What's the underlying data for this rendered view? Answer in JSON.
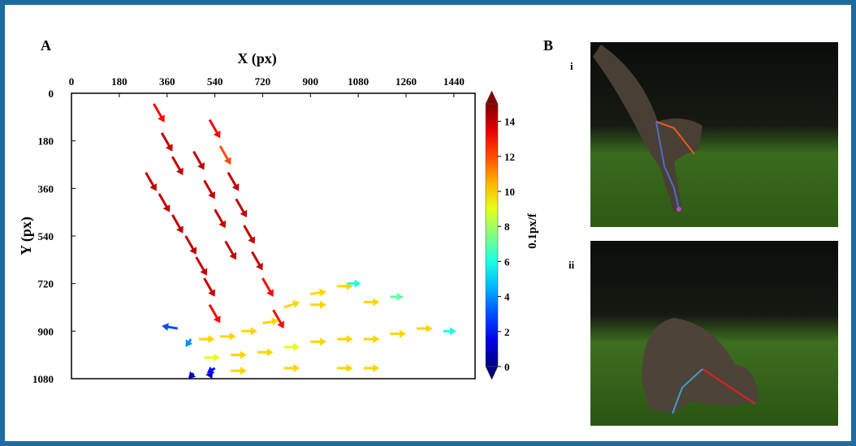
{
  "panel_a": "A",
  "panel_b": "B",
  "photo_i": "i",
  "photo_ii": "ii",
  "chart_data": {
    "type": "quiver",
    "xlabel": "X (px)",
    "ylabel": "Y (px)",
    "xlim": [
      0,
      1520
    ],
    "ylim": [
      0,
      1080
    ],
    "xticks": [
      0,
      180,
      360,
      540,
      720,
      900,
      1080,
      1260,
      1440
    ],
    "yticks": [
      0,
      180,
      360,
      540,
      720,
      900,
      1080
    ],
    "x": [
      310,
      340,
      380,
      280,
      330,
      380,
      430,
      470,
      500,
      520,
      520,
      560,
      590,
      620,
      650,
      680,
      720,
      760,
      460,
      500,
      540,
      580,
      480,
      560,
      640,
      720,
      800,
      900,
      1000,
      1040,
      500,
      600,
      700,
      800,
      900,
      1000,
      1100,
      1200,
      1300,
      1400,
      600,
      800,
      1000,
      1100,
      900,
      1100,
      1200,
      400,
      460,
      520,
      540,
      450
    ],
    "y": [
      40,
      150,
      240,
      300,
      380,
      460,
      540,
      620,
      700,
      800,
      100,
      200,
      300,
      400,
      500,
      600,
      700,
      820,
      220,
      330,
      440,
      560,
      930,
      920,
      900,
      870,
      810,
      760,
      730,
      720,
      1000,
      990,
      980,
      960,
      940,
      930,
      930,
      910,
      890,
      900,
      1050,
      1040,
      1040,
      1040,
      800,
      790,
      770,
      890,
      1060,
      1060,
      1040,
      930
    ],
    "u": [
      40,
      40,
      40,
      40,
      40,
      40,
      40,
      40,
      40,
      40,
      40,
      40,
      40,
      40,
      40,
      40,
      40,
      40,
      40,
      40,
      40,
      40,
      60,
      60,
      60,
      60,
      60,
      60,
      60,
      50,
      60,
      60,
      60,
      60,
      60,
      60,
      60,
      60,
      60,
      50,
      60,
      60,
      60,
      60,
      60,
      60,
      50,
      -60,
      -20,
      10,
      -30,
      -20
    ],
    "v": [
      70,
      70,
      70,
      70,
      70,
      70,
      70,
      70,
      70,
      70,
      70,
      70,
      70,
      70,
      70,
      70,
      70,
      70,
      70,
      70,
      70,
      70,
      0,
      0,
      0,
      -10,
      -20,
      -10,
      0,
      0,
      0,
      0,
      0,
      0,
      0,
      0,
      0,
      0,
      0,
      0,
      0,
      0,
      0,
      0,
      0,
      0,
      0,
      -10,
      20,
      20,
      20,
      30
    ],
    "speed": [
      13,
      14,
      14,
      14,
      14,
      14,
      14,
      14,
      14,
      13,
      13,
      12,
      14,
      14,
      14,
      14,
      13,
      13,
      14,
      14,
      14,
      14,
      10,
      10,
      10,
      10,
      10,
      10,
      10,
      6,
      9,
      10,
      10,
      9,
      10,
      10,
      10,
      10,
      10,
      6,
      10,
      10,
      10,
      10,
      10,
      10,
      7,
      3,
      1,
      1,
      2,
      4
    ],
    "colorbar_label": "0.1px/f",
    "clim": [
      0,
      15
    ],
    "cticks": [
      0,
      2,
      4,
      6,
      8,
      10,
      12,
      14
    ]
  }
}
